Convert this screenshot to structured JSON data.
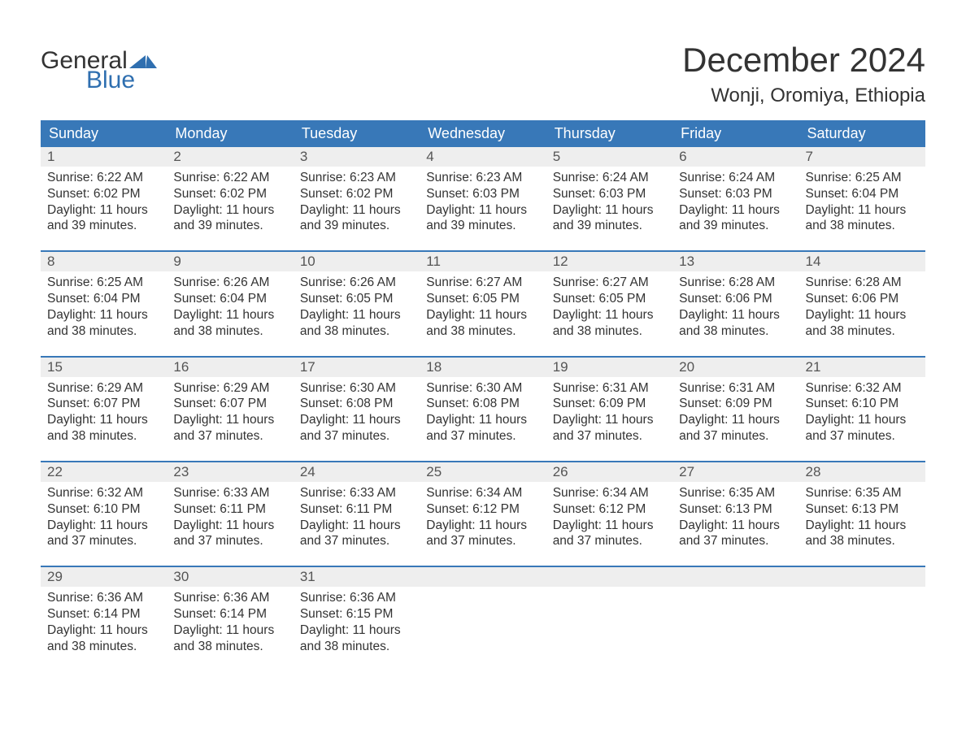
{
  "brand": {
    "word1": "General",
    "word2": "Blue",
    "arrow_color": "#2f6fb0"
  },
  "title": "December 2024",
  "location": "Wonji, Oromiya, Ethiopia",
  "colors": {
    "header_bg": "#3878b8",
    "header_text": "#ffffff",
    "daynum_bg": "#eeeeee",
    "daynum_border": "#3878b8",
    "text": "#333333",
    "daynum_text": "#555555",
    "brand_blue": "#2f6fb0",
    "page_bg": "#ffffff"
  },
  "day_names": [
    "Sunday",
    "Monday",
    "Tuesday",
    "Wednesday",
    "Thursday",
    "Friday",
    "Saturday"
  ],
  "weeks": [
    {
      "nums": [
        "1",
        "2",
        "3",
        "4",
        "5",
        "6",
        "7"
      ],
      "cells": [
        {
          "sunrise": "6:22 AM",
          "sunset": "6:02 PM",
          "daylight": "11 hours and 39 minutes."
        },
        {
          "sunrise": "6:22 AM",
          "sunset": "6:02 PM",
          "daylight": "11 hours and 39 minutes."
        },
        {
          "sunrise": "6:23 AM",
          "sunset": "6:02 PM",
          "daylight": "11 hours and 39 minutes."
        },
        {
          "sunrise": "6:23 AM",
          "sunset": "6:03 PM",
          "daylight": "11 hours and 39 minutes."
        },
        {
          "sunrise": "6:24 AM",
          "sunset": "6:03 PM",
          "daylight": "11 hours and 39 minutes."
        },
        {
          "sunrise": "6:24 AM",
          "sunset": "6:03 PM",
          "daylight": "11 hours and 39 minutes."
        },
        {
          "sunrise": "6:25 AM",
          "sunset": "6:04 PM",
          "daylight": "11 hours and 38 minutes."
        }
      ]
    },
    {
      "nums": [
        "8",
        "9",
        "10",
        "11",
        "12",
        "13",
        "14"
      ],
      "cells": [
        {
          "sunrise": "6:25 AM",
          "sunset": "6:04 PM",
          "daylight": "11 hours and 38 minutes."
        },
        {
          "sunrise": "6:26 AM",
          "sunset": "6:04 PM",
          "daylight": "11 hours and 38 minutes."
        },
        {
          "sunrise": "6:26 AM",
          "sunset": "6:05 PM",
          "daylight": "11 hours and 38 minutes."
        },
        {
          "sunrise": "6:27 AM",
          "sunset": "6:05 PM",
          "daylight": "11 hours and 38 minutes."
        },
        {
          "sunrise": "6:27 AM",
          "sunset": "6:05 PM",
          "daylight": "11 hours and 38 minutes."
        },
        {
          "sunrise": "6:28 AM",
          "sunset": "6:06 PM",
          "daylight": "11 hours and 38 minutes."
        },
        {
          "sunrise": "6:28 AM",
          "sunset": "6:06 PM",
          "daylight": "11 hours and 38 minutes."
        }
      ]
    },
    {
      "nums": [
        "15",
        "16",
        "17",
        "18",
        "19",
        "20",
        "21"
      ],
      "cells": [
        {
          "sunrise": "6:29 AM",
          "sunset": "6:07 PM",
          "daylight": "11 hours and 38 minutes."
        },
        {
          "sunrise": "6:29 AM",
          "sunset": "6:07 PM",
          "daylight": "11 hours and 37 minutes."
        },
        {
          "sunrise": "6:30 AM",
          "sunset": "6:08 PM",
          "daylight": "11 hours and 37 minutes."
        },
        {
          "sunrise": "6:30 AM",
          "sunset": "6:08 PM",
          "daylight": "11 hours and 37 minutes."
        },
        {
          "sunrise": "6:31 AM",
          "sunset": "6:09 PM",
          "daylight": "11 hours and 37 minutes."
        },
        {
          "sunrise": "6:31 AM",
          "sunset": "6:09 PM",
          "daylight": "11 hours and 37 minutes."
        },
        {
          "sunrise": "6:32 AM",
          "sunset": "6:10 PM",
          "daylight": "11 hours and 37 minutes."
        }
      ]
    },
    {
      "nums": [
        "22",
        "23",
        "24",
        "25",
        "26",
        "27",
        "28"
      ],
      "cells": [
        {
          "sunrise": "6:32 AM",
          "sunset": "6:10 PM",
          "daylight": "11 hours and 37 minutes."
        },
        {
          "sunrise": "6:33 AM",
          "sunset": "6:11 PM",
          "daylight": "11 hours and 37 minutes."
        },
        {
          "sunrise": "6:33 AM",
          "sunset": "6:11 PM",
          "daylight": "11 hours and 37 minutes."
        },
        {
          "sunrise": "6:34 AM",
          "sunset": "6:12 PM",
          "daylight": "11 hours and 37 minutes."
        },
        {
          "sunrise": "6:34 AM",
          "sunset": "6:12 PM",
          "daylight": "11 hours and 37 minutes."
        },
        {
          "sunrise": "6:35 AM",
          "sunset": "6:13 PM",
          "daylight": "11 hours and 37 minutes."
        },
        {
          "sunrise": "6:35 AM",
          "sunset": "6:13 PM",
          "daylight": "11 hours and 38 minutes."
        }
      ]
    },
    {
      "nums": [
        "29",
        "30",
        "31",
        "",
        "",
        "",
        ""
      ],
      "cells": [
        {
          "sunrise": "6:36 AM",
          "sunset": "6:14 PM",
          "daylight": "11 hours and 38 minutes."
        },
        {
          "sunrise": "6:36 AM",
          "sunset": "6:14 PM",
          "daylight": "11 hours and 38 minutes."
        },
        {
          "sunrise": "6:36 AM",
          "sunset": "6:15 PM",
          "daylight": "11 hours and 38 minutes."
        },
        null,
        null,
        null,
        null
      ]
    }
  ],
  "labels": {
    "sunrise": "Sunrise: ",
    "sunset": "Sunset: ",
    "daylight": "Daylight: "
  }
}
